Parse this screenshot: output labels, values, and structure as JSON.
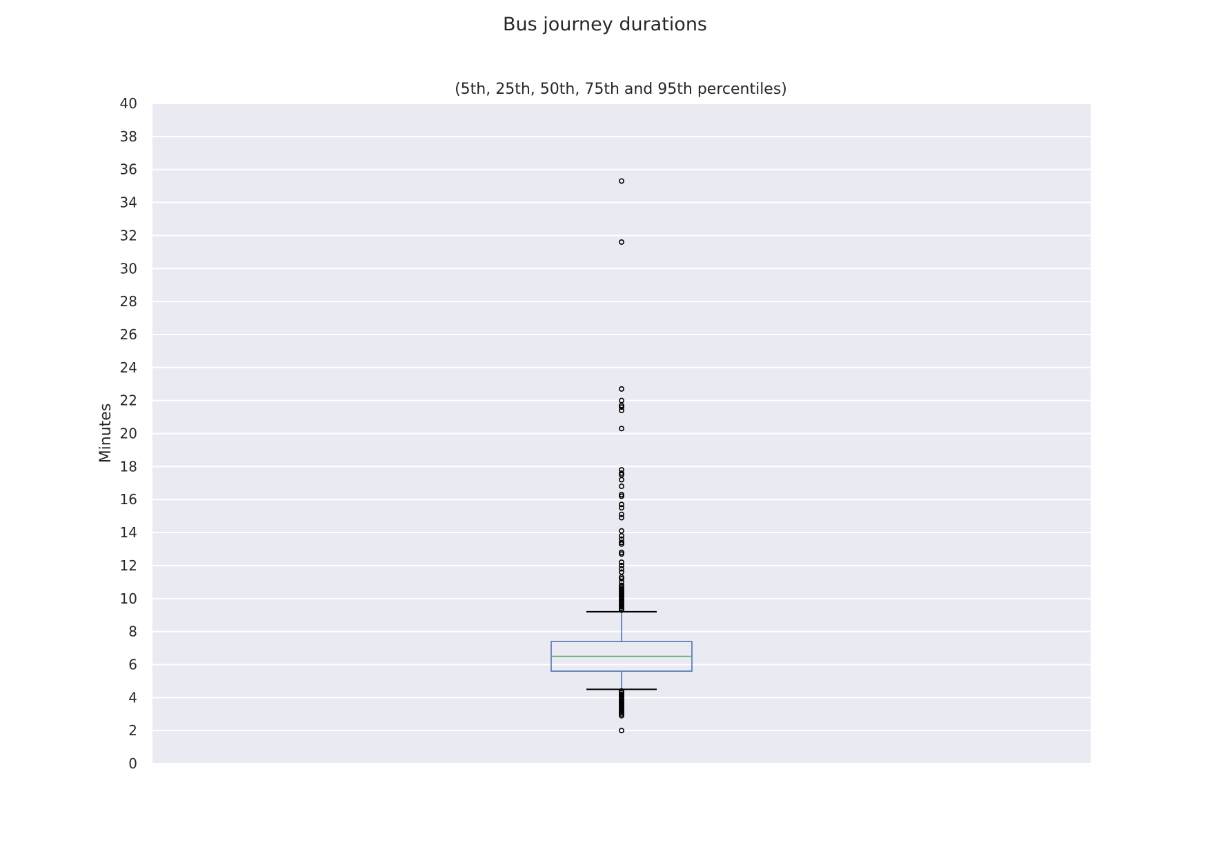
{
  "chart_data": {
    "type": "box",
    "title": "Bus journey durations",
    "subtitle": "(5th, 25th, 50th, 75th and 95th percentiles)",
    "xlabel": "",
    "ylabel": "Minutes",
    "ylim": [
      0,
      40
    ],
    "yticks": [
      0,
      2,
      4,
      6,
      8,
      10,
      12,
      14,
      16,
      18,
      20,
      22,
      24,
      26,
      28,
      30,
      32,
      34,
      36,
      38,
      40
    ],
    "grid": true,
    "legend": "none",
    "series": [
      {
        "percentile_5": 4.5,
        "percentile_25": 5.6,
        "median": 6.5,
        "percentile_75": 7.4,
        "percentile_95": 9.2,
        "outliers_high": [
          35.3,
          31.6,
          22.7,
          22.0,
          21.7,
          21.6,
          21.4,
          20.3,
          17.8,
          17.6,
          17.5,
          17.2,
          16.8,
          16.3,
          16.2,
          15.7,
          15.5,
          15.1,
          14.9,
          14.1,
          13.8,
          13.6,
          13.4,
          13.3,
          12.8,
          12.7,
          12.2,
          12.0,
          11.8,
          11.6,
          11.3,
          11.2,
          11.0,
          10.8,
          10.7,
          10.6,
          10.5,
          10.4,
          10.3,
          10.2,
          10.1,
          10.0,
          9.9,
          9.8,
          9.7,
          9.6,
          9.5,
          9.4,
          9.3
        ],
        "outliers_low": [
          4.4,
          4.3,
          4.2,
          4.1,
          4.0,
          3.9,
          3.8,
          3.7,
          3.6,
          3.5,
          3.4,
          3.3,
          3.2,
          3.1,
          3.0,
          2.9,
          2.0
        ]
      }
    ],
    "colors": {
      "plot_background": "#eaeaf2",
      "gridline": "#ffffff",
      "box": "#4c72b0",
      "median": "#55a868",
      "whisker_cap": "#000000",
      "outlier": "#000000"
    }
  }
}
